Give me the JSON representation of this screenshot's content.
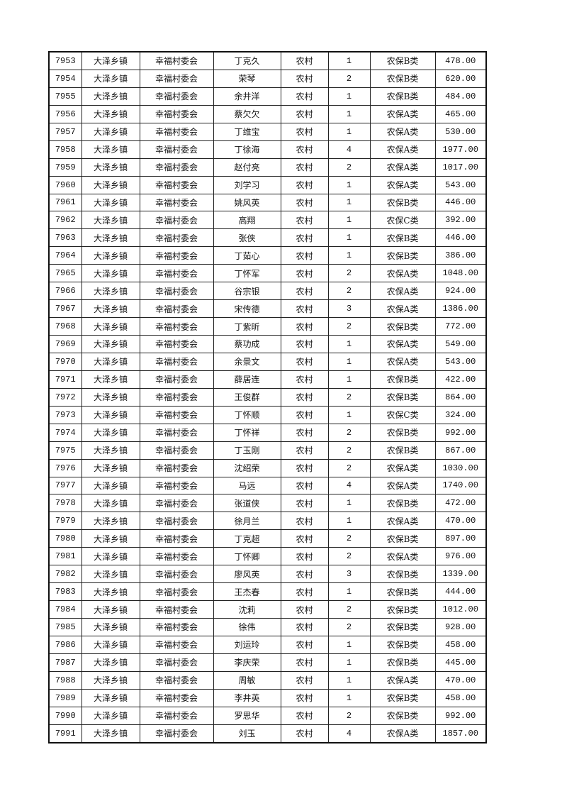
{
  "table": {
    "columns": [
      "id",
      "town",
      "committee",
      "name",
      "area",
      "persons",
      "category",
      "amount"
    ],
    "rows": [
      [
        "7953",
        "大泽乡镇",
        "幸福村委会",
        "丁克久",
        "农村",
        "1",
        "农保B类",
        "478.00"
      ],
      [
        "7954",
        "大泽乡镇",
        "幸福村委会",
        "荣琴",
        "农村",
        "2",
        "农保B类",
        "620.00"
      ],
      [
        "7955",
        "大泽乡镇",
        "幸福村委会",
        "余井洋",
        "农村",
        "1",
        "农保B类",
        "484.00"
      ],
      [
        "7956",
        "大泽乡镇",
        "幸福村委会",
        "蔡欠欠",
        "农村",
        "1",
        "农保A类",
        "465.00"
      ],
      [
        "7957",
        "大泽乡镇",
        "幸福村委会",
        "丁维宝",
        "农村",
        "1",
        "农保A类",
        "530.00"
      ],
      [
        "7958",
        "大泽乡镇",
        "幸福村委会",
        "丁徐海",
        "农村",
        "4",
        "农保A类",
        "1977.00"
      ],
      [
        "7959",
        "大泽乡镇",
        "幸福村委会",
        "赵付亮",
        "农村",
        "2",
        "农保A类",
        "1017.00"
      ],
      [
        "7960",
        "大泽乡镇",
        "幸福村委会",
        "刘学习",
        "农村",
        "1",
        "农保A类",
        "543.00"
      ],
      [
        "7961",
        "大泽乡镇",
        "幸福村委会",
        "姚风英",
        "农村",
        "1",
        "农保B类",
        "446.00"
      ],
      [
        "7962",
        "大泽乡镇",
        "幸福村委会",
        "高翔",
        "农村",
        "1",
        "农保C类",
        "392.00"
      ],
      [
        "7963",
        "大泽乡镇",
        "幸福村委会",
        "张侠",
        "农村",
        "1",
        "农保B类",
        "446.00"
      ],
      [
        "7964",
        "大泽乡镇",
        "幸福村委会",
        "丁茹心",
        "农村",
        "1",
        "农保B类",
        "386.00"
      ],
      [
        "7965",
        "大泽乡镇",
        "幸福村委会",
        "丁怀军",
        "农村",
        "2",
        "农保A类",
        "1048.00"
      ],
      [
        "7966",
        "大泽乡镇",
        "幸福村委会",
        "谷宗银",
        "农村",
        "2",
        "农保A类",
        "924.00"
      ],
      [
        "7967",
        "大泽乡镇",
        "幸福村委会",
        "宋传德",
        "农村",
        "3",
        "农保A类",
        "1386.00"
      ],
      [
        "7968",
        "大泽乡镇",
        "幸福村委会",
        "丁紫昕",
        "农村",
        "2",
        "农保B类",
        "772.00"
      ],
      [
        "7969",
        "大泽乡镇",
        "幸福村委会",
        "蔡功成",
        "农村",
        "1",
        "农保A类",
        "549.00"
      ],
      [
        "7970",
        "大泽乡镇",
        "幸福村委会",
        "余景文",
        "农村",
        "1",
        "农保A类",
        "543.00"
      ],
      [
        "7971",
        "大泽乡镇",
        "幸福村委会",
        "薛居连",
        "农村",
        "1",
        "农保B类",
        "422.00"
      ],
      [
        "7972",
        "大泽乡镇",
        "幸福村委会",
        "王俊群",
        "农村",
        "2",
        "农保B类",
        "864.00"
      ],
      [
        "7973",
        "大泽乡镇",
        "幸福村委会",
        "丁怀顺",
        "农村",
        "1",
        "农保C类",
        "324.00"
      ],
      [
        "7974",
        "大泽乡镇",
        "幸福村委会",
        "丁怀祥",
        "农村",
        "2",
        "农保B类",
        "992.00"
      ],
      [
        "7975",
        "大泽乡镇",
        "幸福村委会",
        "丁玉刚",
        "农村",
        "2",
        "农保B类",
        "867.00"
      ],
      [
        "7976",
        "大泽乡镇",
        "幸福村委会",
        "沈绍荣",
        "农村",
        "2",
        "农保A类",
        "1030.00"
      ],
      [
        "7977",
        "大泽乡镇",
        "幸福村委会",
        "马远",
        "农村",
        "4",
        "农保A类",
        "1740.00"
      ],
      [
        "7978",
        "大泽乡镇",
        "幸福村委会",
        "张道侠",
        "农村",
        "1",
        "农保B类",
        "472.00"
      ],
      [
        "7979",
        "大泽乡镇",
        "幸福村委会",
        "徐月兰",
        "农村",
        "1",
        "农保A类",
        "470.00"
      ],
      [
        "7980",
        "大泽乡镇",
        "幸福村委会",
        "丁克超",
        "农村",
        "2",
        "农保B类",
        "897.00"
      ],
      [
        "7981",
        "大泽乡镇",
        "幸福村委会",
        "丁怀卿",
        "农村",
        "2",
        "农保A类",
        "976.00"
      ],
      [
        "7982",
        "大泽乡镇",
        "幸福村委会",
        "廖风英",
        "农村",
        "3",
        "农保B类",
        "1339.00"
      ],
      [
        "7983",
        "大泽乡镇",
        "幸福村委会",
        "王杰春",
        "农村",
        "1",
        "农保B类",
        "444.00"
      ],
      [
        "7984",
        "大泽乡镇",
        "幸福村委会",
        "沈莉",
        "农村",
        "2",
        "农保B类",
        "1012.00"
      ],
      [
        "7985",
        "大泽乡镇",
        "幸福村委会",
        "徐伟",
        "农村",
        "2",
        "农保B类",
        "928.00"
      ],
      [
        "7986",
        "大泽乡镇",
        "幸福村委会",
        "刘运玲",
        "农村",
        "1",
        "农保B类",
        "458.00"
      ],
      [
        "7987",
        "大泽乡镇",
        "幸福村委会",
        "李庆荣",
        "农村",
        "1",
        "农保B类",
        "445.00"
      ],
      [
        "7988",
        "大泽乡镇",
        "幸福村委会",
        "周敏",
        "农村",
        "1",
        "农保A类",
        "470.00"
      ],
      [
        "7989",
        "大泽乡镇",
        "幸福村委会",
        "李井英",
        "农村",
        "1",
        "农保B类",
        "458.00"
      ],
      [
        "7990",
        "大泽乡镇",
        "幸福村委会",
        "罗思华",
        "农村",
        "2",
        "农保B类",
        "992.00"
      ],
      [
        "7991",
        "大泽乡镇",
        "幸福村委会",
        "刘玉",
        "农村",
        "4",
        "农保A类",
        "1857.00"
      ]
    ]
  }
}
